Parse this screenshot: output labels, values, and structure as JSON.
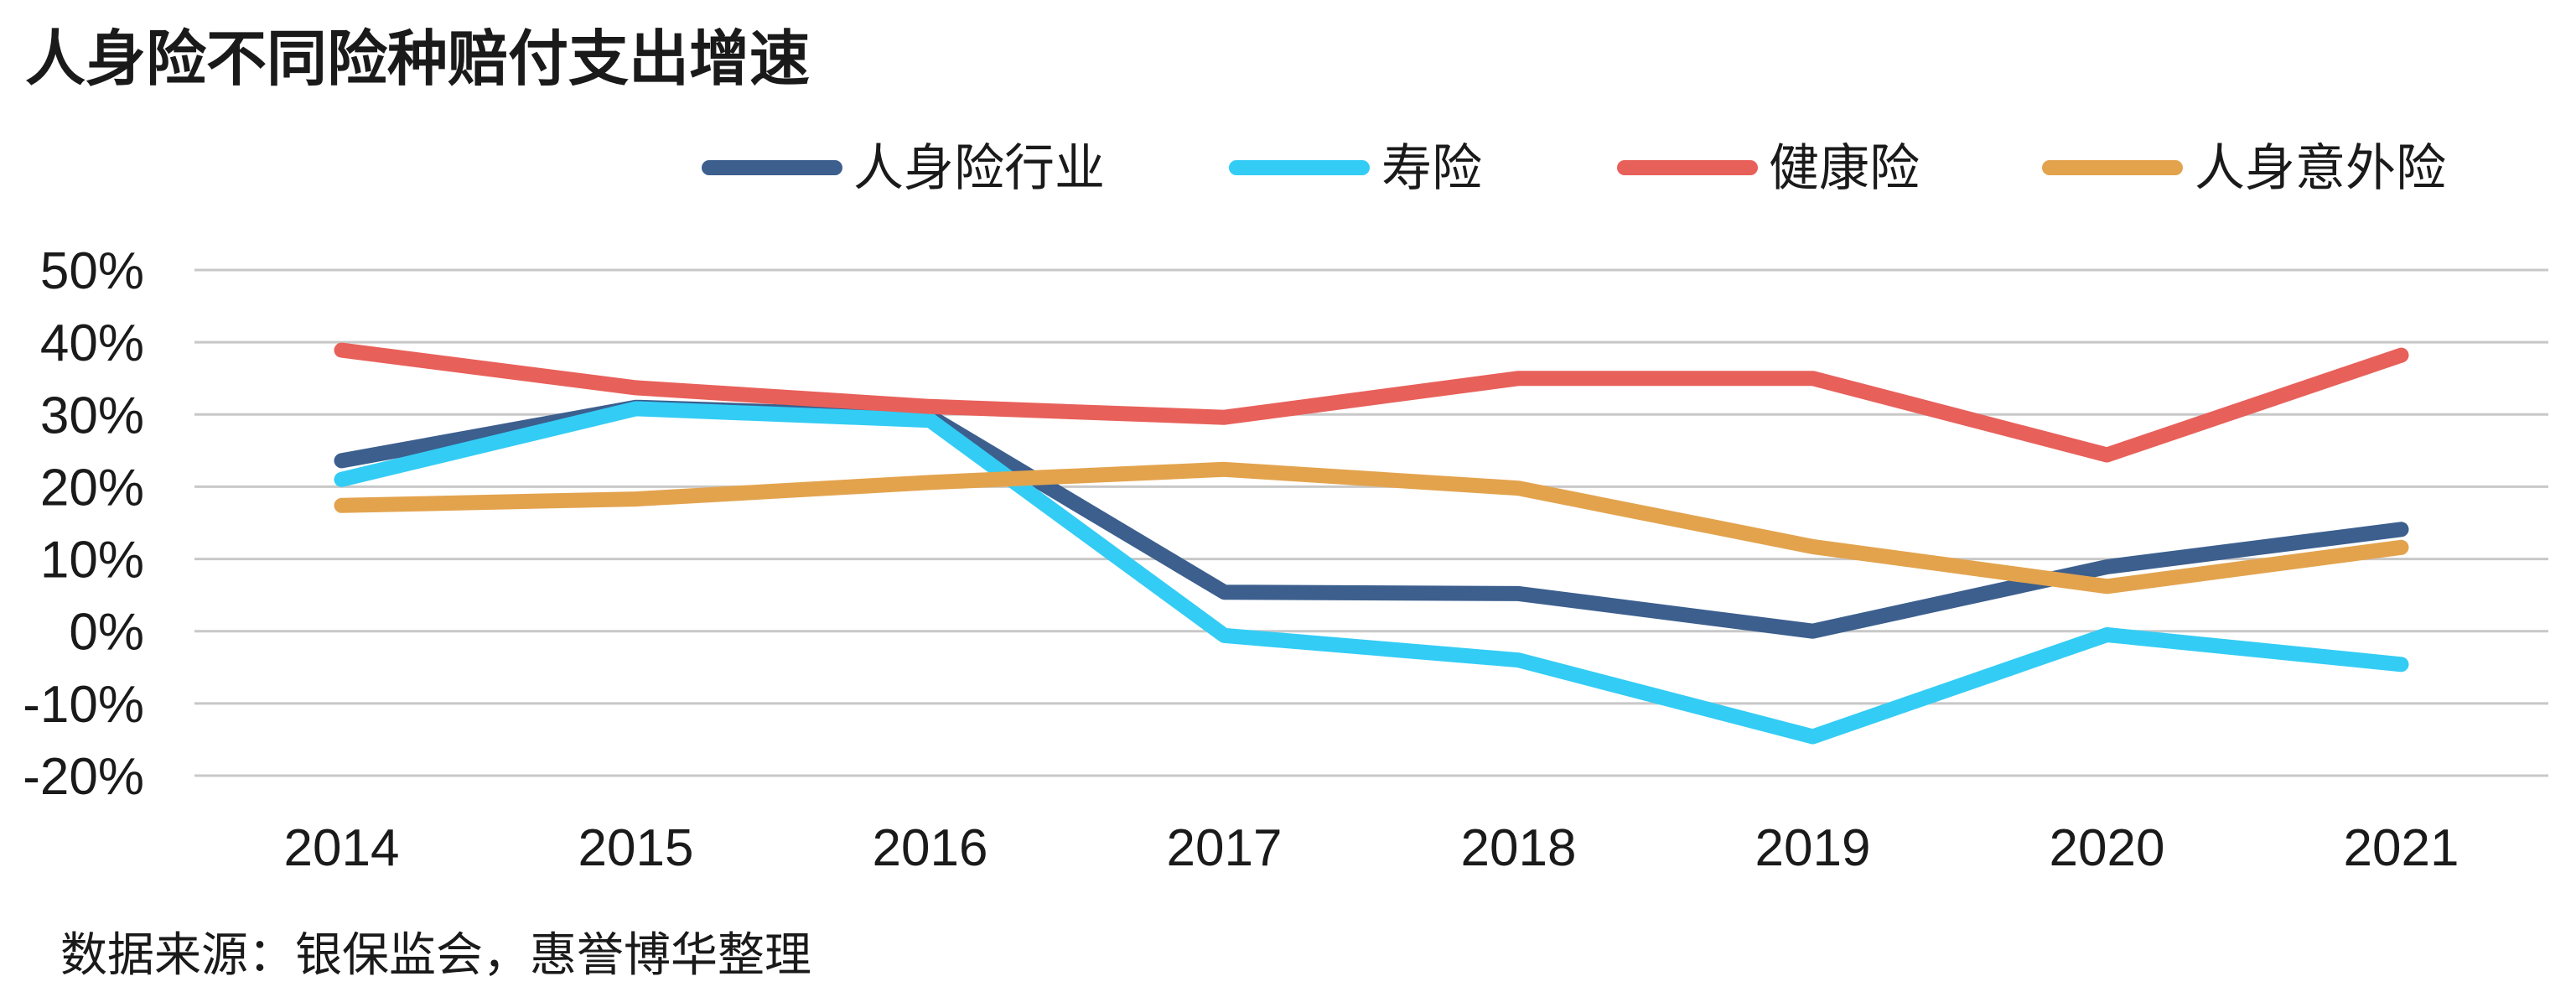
{
  "chart_data": {
    "type": "line",
    "title": "人身险不同险种赔付支出增速",
    "source": "数据来源：银保监会，惠誉博华整理",
    "categories": [
      "2014",
      "2015",
      "2016",
      "2017",
      "2018",
      "2019",
      "2020",
      "2021"
    ],
    "ylim": [
      -0.2,
      0.5
    ],
    "yticks": [
      -0.2,
      -0.1,
      0.0,
      0.1,
      0.2,
      0.3,
      0.4,
      0.5
    ],
    "ytick_labels": [
      "-20%",
      "-10%",
      "0%",
      "10%",
      "20%",
      "30%",
      "40%",
      "50%"
    ],
    "grid": true,
    "legend_position": "top-right",
    "series": [
      {
        "name": "人身险行业",
        "color": "#3c5f8e",
        "values": [
          0.236,
          0.31,
          0.297,
          0.054,
          0.052,
          0.0,
          0.089,
          0.141
        ]
      },
      {
        "name": "寿险",
        "color": "#33ccf5",
        "values": [
          0.21,
          0.308,
          0.292,
          -0.006,
          -0.04,
          -0.146,
          -0.005,
          -0.046
        ]
      },
      {
        "name": "健康险",
        "color": "#e8605a",
        "values": [
          0.389,
          0.337,
          0.311,
          0.296,
          0.35,
          0.35,
          0.244,
          0.382
        ]
      },
      {
        "name": "人身意外险",
        "color": "#e3a34d",
        "values": [
          0.174,
          0.183,
          0.206,
          0.224,
          0.198,
          0.117,
          0.062,
          0.116
        ]
      }
    ]
  }
}
